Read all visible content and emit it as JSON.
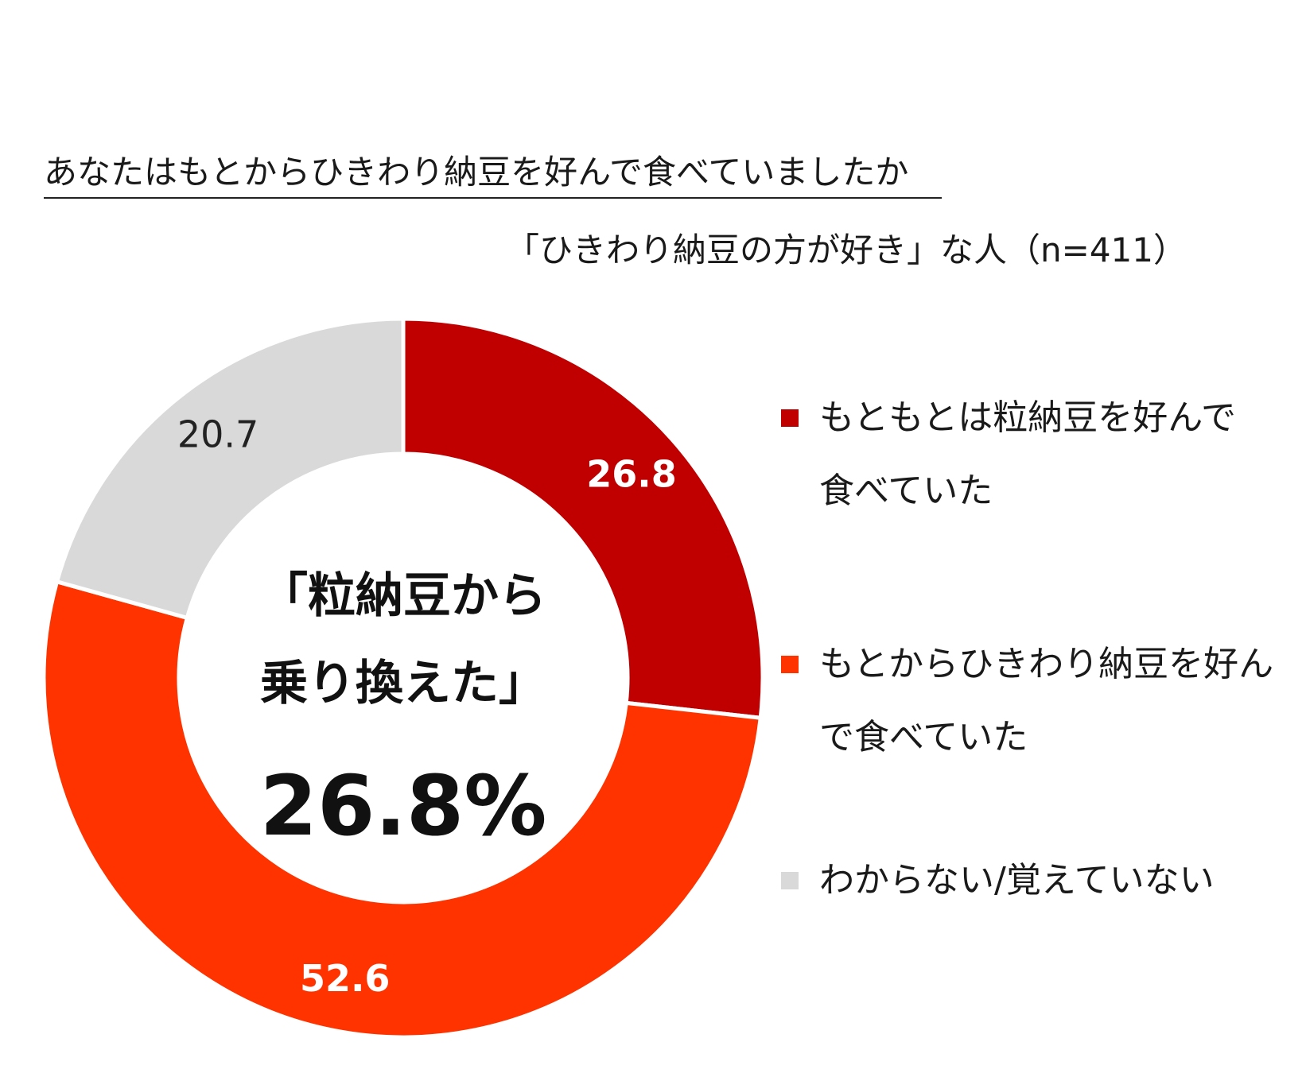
{
  "header": {
    "title": "あなたはもとからひきわり納豆を好んで食べていましたか",
    "subtitle": "「ひきわり納豆の方が好き」な人（n=411）"
  },
  "center": {
    "line1": "「粒納豆から",
    "line2": "乗り換えた」",
    "value": "26.8%"
  },
  "chart_data": {
    "type": "pie",
    "donut": true,
    "title": "あなたはもとからひきわり納豆を好んで食べていましたか",
    "subtitle": "「ひきわり納豆の方が好き」な人（n=411）",
    "unit": "%",
    "legend_position": "right",
    "slices": [
      {
        "label": "もともとは粒納豆を好んで食べていた",
        "legend_lines": [
          "もともとは粒納豆を好んで",
          "食べていた"
        ],
        "value": 26.8,
        "value_label": "26.8",
        "color": "#C00000",
        "label_color": "#ffffff"
      },
      {
        "label": "もとからひきわり納豆を好んで食べていた",
        "legend_lines": [
          "もとからひきわり納豆を好ん",
          "で食べていた"
        ],
        "value": 52.6,
        "value_label": "52.6",
        "color": "#FF3300",
        "label_color": "#ffffff"
      },
      {
        "label": "わからない/覚えていない",
        "legend_lines": [
          "わからない/覚えていない"
        ],
        "value": 20.7,
        "value_label": "20.7",
        "color": "#D9D9D9",
        "label_color": "#222222"
      }
    ]
  }
}
